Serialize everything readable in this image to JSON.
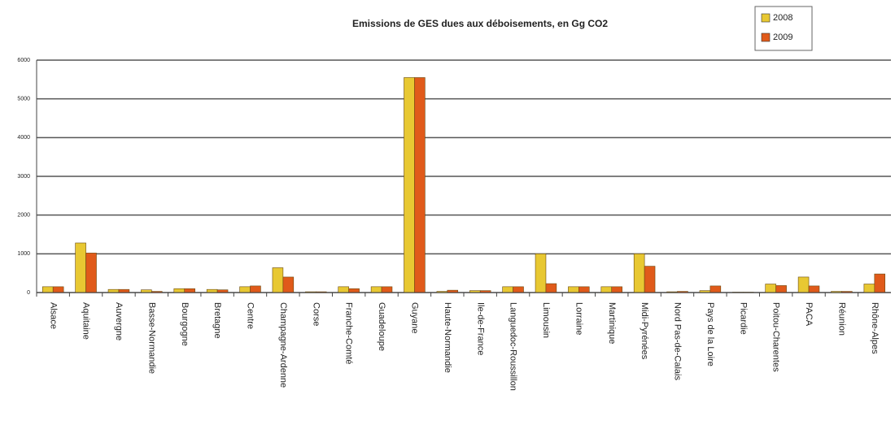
{
  "chart_data": {
    "type": "bar",
    "title": "Emissions de GES dues aux déboisements, en Gg CO2",
    "categories": [
      "Alsace",
      "Aquitaine",
      "Auvergne",
      "Basse-Normandie",
      "Bourgogne",
      "Bretagne",
      "Centre",
      "Champagne-Ardenne",
      "Corse",
      "Franche-Comté",
      "Guadeloupe",
      "Guyane",
      "Haute-Normandie",
      "Ile-de-France",
      "Languedoc-Roussillon",
      "Limousin",
      "Lorraine",
      "Martinique",
      "Midi-Pyrénées",
      "Nord Pas-de-Calais",
      "Pays de la Loire",
      "Picardie",
      "Poitou-Charentes",
      "PACA",
      "Réunion",
      "Rhône-Alpes"
    ],
    "series": [
      {
        "name": "2008",
        "color": "#e8c832",
        "values": [
          150,
          1280,
          80,
          70,
          100,
          80,
          150,
          640,
          20,
          150,
          150,
          5550,
          30,
          50,
          150,
          1000,
          150,
          150,
          1000,
          20,
          50,
          10,
          220,
          400,
          30,
          220
        ]
      },
      {
        "name": "2009",
        "color": "#e05a1a",
        "values": [
          150,
          1020,
          80,
          30,
          100,
          70,
          170,
          400,
          20,
          100,
          150,
          5550,
          60,
          50,
          150,
          230,
          150,
          150,
          680,
          30,
          170,
          10,
          180,
          170,
          30,
          480
        ]
      }
    ],
    "ylim": [
      0,
      6000
    ],
    "yticks": [
      0,
      1000,
      2000,
      3000,
      4000,
      5000,
      6000
    ],
    "grid": true,
    "legend": "top-right"
  }
}
